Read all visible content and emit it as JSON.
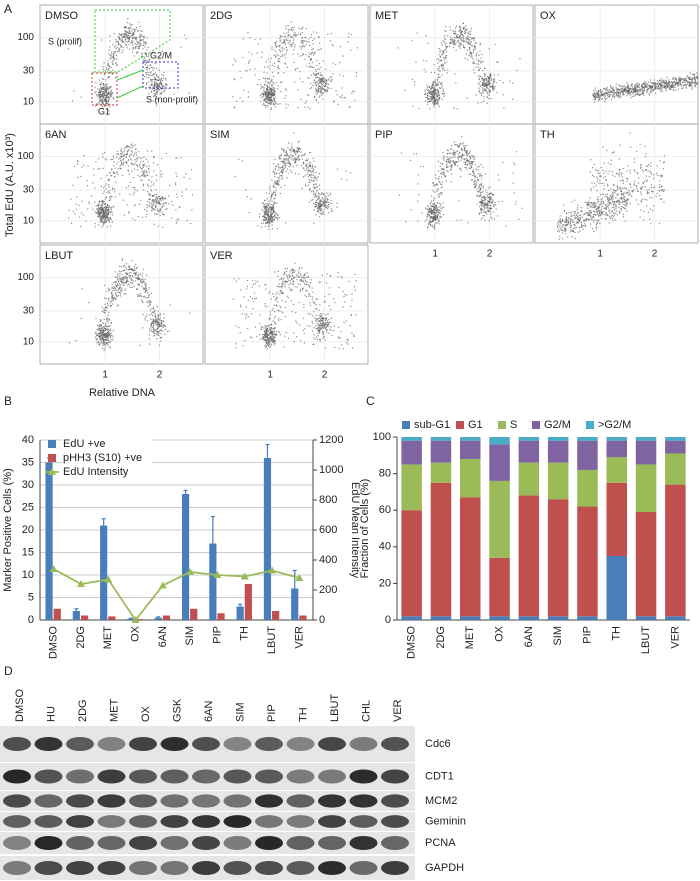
{
  "panel_labels": [
    "A",
    "B",
    "C",
    "D"
  ],
  "panel_a": {
    "panels": [
      "DMSO",
      "2DG",
      "MET",
      "OX",
      "6AN",
      "SIM",
      "PIP",
      "TH",
      "LBUT",
      "VER"
    ],
    "y_label": "Total EdU (A.U. x10³)",
    "x_label": "Relative DNA",
    "ylim": [
      4.5,
      320
    ],
    "yticks": [
      10,
      30,
      100
    ],
    "log_y": true,
    "xlim": [
      -0.2,
      2.8
    ],
    "xticks": [
      1,
      2
    ],
    "gates": [
      "S (prolif)",
      "G2/M",
      "S (non-prolif)",
      "G1"
    ]
  },
  "chart_data": [
    {
      "type": "bar",
      "categories": [
        "DMSO",
        "2DG",
        "MET",
        "OX",
        "6AN",
        "SIM",
        "PIP",
        "TH",
        "LBUT",
        "VER"
      ],
      "y_label": "Marker Positive Cells (%)",
      "y2_label": "EdU Mean Intensity",
      "ylim": [
        0,
        40
      ],
      "yticks": [
        0,
        5,
        10,
        15,
        20,
        25,
        30,
        35,
        40
      ],
      "y2lim": [
        0,
        1200
      ],
      "y2ticks": [
        0,
        200,
        400,
        600,
        800,
        1000,
        1200
      ],
      "grid": true,
      "legend": "top-left",
      "series": [
        {
          "name": "EdU +ve",
          "color": "#4a7ebb",
          "values": [
            35,
            2,
            21,
            0.3,
            0.5,
            28,
            17,
            3,
            36,
            7
          ],
          "errors": [
            1,
            0.5,
            1.5,
            0.1,
            0.2,
            0.8,
            6,
            0.5,
            3,
            4
          ]
        },
        {
          "name": "pHH3 (S10) +ve",
          "color": "#c0504d",
          "values": [
            2.5,
            1,
            0.8,
            0.2,
            1,
            2.5,
            1.5,
            8,
            2,
            1
          ]
        },
        {
          "name": "EdU Intensity",
          "color": "#9bbb59",
          "axis": "y2",
          "type": "line",
          "values": [
            340,
            240,
            270,
            0,
            230,
            320,
            300,
            290,
            330,
            280
          ]
        }
      ]
    },
    {
      "type": "stacked-bar",
      "categories": [
        "DMSO",
        "2DG",
        "MET",
        "OX",
        "6AN",
        "SIM",
        "PIP",
        "TH",
        "LBUT",
        "VER"
      ],
      "y_label": "Fraction of Cells (%)",
      "ylim": [
        0,
        100
      ],
      "yticks": [
        0,
        20,
        40,
        60,
        80,
        100
      ],
      "legend": "top",
      "series": [
        {
          "name": "sub-G1",
          "color": "#4a7ebb",
          "values": [
            2,
            2,
            2,
            2,
            2,
            2,
            2,
            35,
            2,
            2
          ]
        },
        {
          "name": "G1",
          "color": "#c0504d",
          "values": [
            58,
            73,
            65,
            32,
            66,
            64,
            60,
            40,
            57,
            72
          ]
        },
        {
          "name": "S",
          "color": "#9bbb59",
          "values": [
            25,
            11,
            21,
            42,
            18,
            20,
            20,
            14,
            26,
            17
          ]
        },
        {
          "name": "G2/M",
          "color": "#8064a2",
          "values": [
            13,
            12,
            10,
            20,
            12,
            12,
            16,
            9,
            13,
            7
          ]
        },
        {
          "name": ">G2/M",
          "color": "#4bacc6",
          "values": [
            2,
            2,
            2,
            4,
            2,
            2,
            2,
            2,
            2,
            2
          ]
        }
      ]
    }
  ],
  "panel_d": {
    "lanes": [
      "DMSO",
      "HU",
      "2DG",
      "MET",
      "OX",
      "GSK",
      "6AN",
      "SIM",
      "PIP",
      "TH",
      "LBUT",
      "CHL",
      "VER"
    ],
    "proteins": [
      "Cdc6",
      "CDT1",
      "MCM2",
      "Geminin",
      "PCNA",
      "GAPDH"
    ]
  }
}
